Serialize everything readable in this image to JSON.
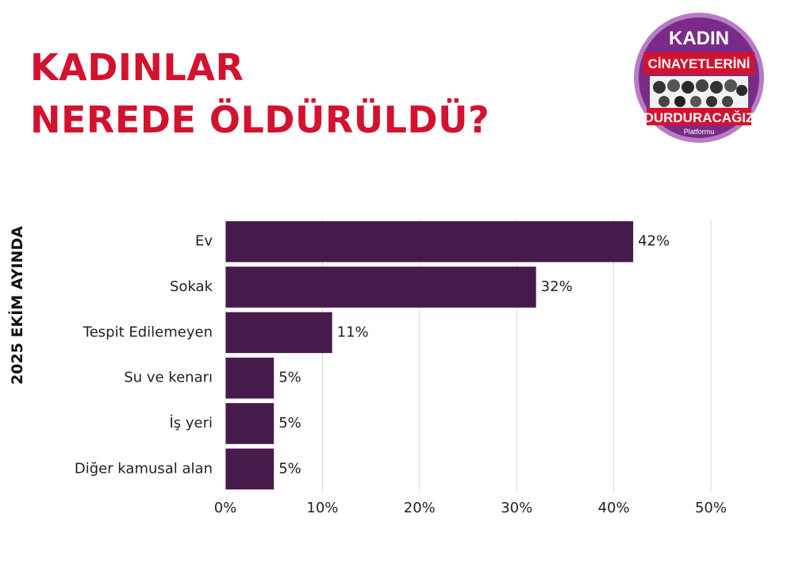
{
  "title": {
    "line1": "KADINLAR",
    "line2": "NEREDE ÖLDÜRÜLDÜ?"
  },
  "side_label": "2025 EKİM AYINDA",
  "logo": {
    "line1": "KADIN",
    "line2": "CİNAYETLERİNİ",
    "line3": "DURDURACAĞIZ",
    "line4": "Platformu"
  },
  "colors": {
    "title": "#d3122f",
    "bar": "#461a4b",
    "logo_purple": "#7a2b88",
    "logo_red": "#d3122f",
    "grid": "#d9d9d9"
  },
  "chart_data": {
    "type": "bar",
    "orientation": "horizontal",
    "categories": [
      "Ev",
      "Sokak",
      "Tespit Edilemeyen",
      "Su ve kenarı",
      "İş yeri",
      "Diğer kamusal alan"
    ],
    "values": [
      42,
      32,
      11,
      5,
      5,
      5
    ],
    "value_labels": [
      "42%",
      "32%",
      "11%",
      "5%",
      "5%",
      "5%"
    ],
    "xlim": [
      0,
      50
    ],
    "xticks": [
      0,
      10,
      20,
      30,
      40,
      50
    ],
    "xtick_labels": [
      "0%",
      "10%",
      "20%",
      "30%",
      "40%",
      "50%"
    ],
    "grid": true,
    "title": "",
    "xlabel": "",
    "ylabel": ""
  }
}
